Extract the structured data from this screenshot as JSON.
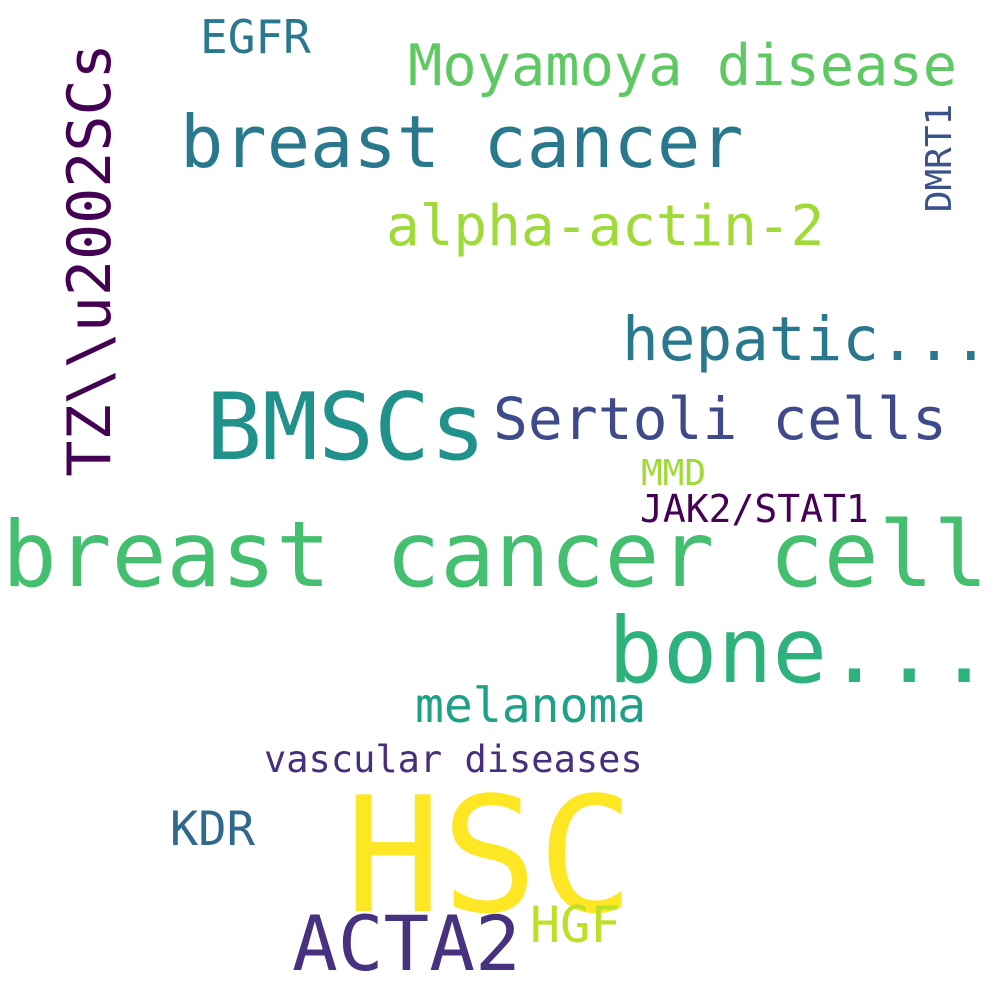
{
  "words": [
    {
      "id": "egfr",
      "text": "EGFR",
      "color": "#2a788e"
    },
    {
      "id": "moyamoya",
      "text": "Moyamoya disease",
      "color": "#5ec962"
    },
    {
      "id": "breast-cancer",
      "text": "breast cancer",
      "color": "#2a788e"
    },
    {
      "id": "dmrt1",
      "text": "DMRT1",
      "color": "#3b528b"
    },
    {
      "id": "tz",
      "text": "TZ\\\\u2002SCs",
      "color": "#440154"
    },
    {
      "id": "alpha-actin",
      "text": "alpha-actin-2",
      "color": "#a0da39"
    },
    {
      "id": "hepatic",
      "text": "hepatic...",
      "color": "#2a788e"
    },
    {
      "id": "bmscs",
      "text": "BMSCs",
      "color": "#21918c"
    },
    {
      "id": "sertoli",
      "text": "Sertoli cells",
      "color": "#3e4a89"
    },
    {
      "id": "mmd",
      "text": "MMD",
      "color": "#a0da39"
    },
    {
      "id": "jak2",
      "text": "JAK2/STAT1",
      "color": "#440154"
    },
    {
      "id": "breast-cancer-cell",
      "text": "breast cancer cell",
      "color": "#44bf70"
    },
    {
      "id": "bone",
      "text": "bone...",
      "color": "#2db27d"
    },
    {
      "id": "melanoma",
      "text": "melanoma",
      "color": "#1fa187"
    },
    {
      "id": "vascular",
      "text": "vascular diseases",
      "color": "#472f7d"
    },
    {
      "id": "kdr",
      "text": "KDR",
      "color": "#31688e"
    },
    {
      "id": "hsc",
      "text": "HSC",
      "color": "#fde725"
    },
    {
      "id": "acta2",
      "text": "ACTA2",
      "color": "#46327e"
    },
    {
      "id": "hgf",
      "text": "HGF",
      "color": "#bddf26"
    }
  ]
}
